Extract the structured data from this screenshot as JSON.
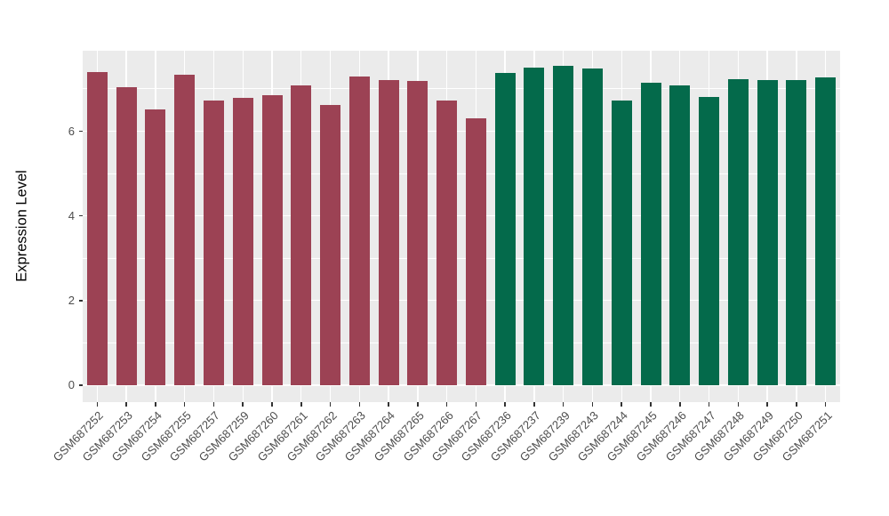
{
  "chart_data": {
    "type": "bar",
    "title": "",
    "xlabel": "",
    "ylabel": "Expression Level",
    "ylim": [
      -0.4,
      7.9
    ],
    "yticks": [
      0,
      2,
      4,
      6
    ],
    "minor_gridlines": [
      1,
      3,
      5,
      7
    ],
    "grid": true,
    "legend_position": "none",
    "panel_bg": "#EBEBEB",
    "gridline_color": "#FFFFFF",
    "group_colors": {
      "maroon": "#9C4254",
      "green": "#046A4B"
    },
    "bars": [
      {
        "label": "GSM687252",
        "value": 7.4,
        "group": "maroon"
      },
      {
        "label": "GSM687253",
        "value": 7.04,
        "group": "maroon"
      },
      {
        "label": "GSM687254",
        "value": 6.52,
        "group": "maroon"
      },
      {
        "label": "GSM687255",
        "value": 7.34,
        "group": "maroon"
      },
      {
        "label": "GSM687257",
        "value": 6.72,
        "group": "maroon"
      },
      {
        "label": "GSM687259",
        "value": 6.79,
        "group": "maroon"
      },
      {
        "label": "GSM687260",
        "value": 6.85,
        "group": "maroon"
      },
      {
        "label": "GSM687261",
        "value": 7.08,
        "group": "maroon"
      },
      {
        "label": "GSM687262",
        "value": 6.62,
        "group": "maroon"
      },
      {
        "label": "GSM687263",
        "value": 7.3,
        "group": "maroon"
      },
      {
        "label": "GSM687264",
        "value": 7.21,
        "group": "maroon"
      },
      {
        "label": "GSM687265",
        "value": 7.18,
        "group": "maroon"
      },
      {
        "label": "GSM687266",
        "value": 6.72,
        "group": "maroon"
      },
      {
        "label": "GSM687267",
        "value": 6.3,
        "group": "maroon"
      },
      {
        "label": "GSM687236",
        "value": 7.38,
        "group": "green"
      },
      {
        "label": "GSM687237",
        "value": 7.51,
        "group": "green"
      },
      {
        "label": "GSM687239",
        "value": 7.54,
        "group": "green"
      },
      {
        "label": "GSM687243",
        "value": 7.48,
        "group": "green"
      },
      {
        "label": "GSM687244",
        "value": 6.73,
        "group": "green"
      },
      {
        "label": "GSM687245",
        "value": 7.14,
        "group": "green"
      },
      {
        "label": "GSM687246",
        "value": 7.08,
        "group": "green"
      },
      {
        "label": "GSM687247",
        "value": 6.81,
        "group": "green"
      },
      {
        "label": "GSM687248",
        "value": 7.23,
        "group": "green"
      },
      {
        "label": "GSM687249",
        "value": 7.21,
        "group": "green"
      },
      {
        "label": "GSM687250",
        "value": 7.21,
        "group": "green"
      },
      {
        "label": "GSM687251",
        "value": 7.26,
        "group": "green"
      }
    ]
  }
}
